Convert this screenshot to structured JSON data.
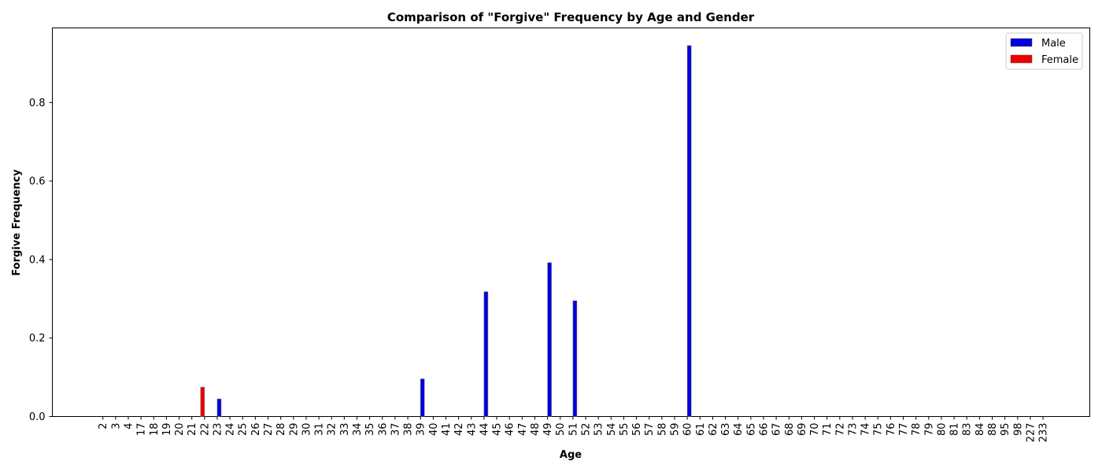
{
  "chart_data": {
    "type": "bar",
    "title": "Comparison of \"Forgive\" Frequency by Age and Gender",
    "xlabel": "Age",
    "ylabel": "Forgive Frequency",
    "categories": [
      "2",
      "3",
      "4",
      "17",
      "18",
      "19",
      "20",
      "21",
      "22",
      "23",
      "24",
      "25",
      "26",
      "27",
      "28",
      "29",
      "30",
      "31",
      "32",
      "33",
      "34",
      "35",
      "36",
      "37",
      "38",
      "39",
      "40",
      "41",
      "42",
      "43",
      "44",
      "45",
      "46",
      "47",
      "48",
      "49",
      "50",
      "51",
      "52",
      "53",
      "54",
      "55",
      "56",
      "57",
      "58",
      "59",
      "60",
      "61",
      "62",
      "63",
      "64",
      "65",
      "66",
      "67",
      "68",
      "69",
      "70",
      "71",
      "72",
      "73",
      "74",
      "75",
      "76",
      "77",
      "78",
      "79",
      "80",
      "81",
      "83",
      "84",
      "88",
      "95",
      "98",
      "227",
      "233"
    ],
    "series": [
      {
        "name": "Male",
        "color": "#0000dd",
        "values": [
          0,
          0,
          0,
          0,
          0,
          0,
          0,
          0,
          0,
          0.045,
          0,
          0,
          0,
          0,
          0,
          0,
          0,
          0,
          0,
          0,
          0,
          0,
          0,
          0,
          0,
          0.096,
          0,
          0,
          0,
          0,
          0.318,
          0,
          0,
          0,
          0,
          0.392,
          0,
          0.295,
          0,
          0,
          0,
          0,
          0,
          0,
          0,
          0,
          0.945,
          0,
          0,
          0,
          0,
          0,
          0,
          0,
          0,
          0,
          0,
          0,
          0,
          0,
          0,
          0,
          0,
          0,
          0,
          0,
          0,
          0,
          0,
          0,
          0,
          0,
          0,
          0,
          0
        ]
      },
      {
        "name": "Female",
        "color": "#ee0000",
        "values": [
          0,
          0,
          0,
          0,
          0,
          0,
          0,
          0,
          0.075,
          0,
          0,
          0,
          0,
          0,
          0,
          0,
          0,
          0,
          0,
          0,
          0,
          0,
          0,
          0,
          0,
          0,
          0,
          0,
          0,
          0,
          0,
          0,
          0,
          0,
          0,
          0,
          0,
          0,
          0,
          0,
          0,
          0,
          0,
          0,
          0,
          0,
          0,
          0,
          0,
          0,
          0,
          0,
          0,
          0,
          0,
          0,
          0,
          0,
          0,
          0,
          0,
          0,
          0,
          0,
          0,
          0,
          0,
          0,
          0,
          0,
          0,
          0,
          0,
          0,
          0
        ]
      }
    ],
    "yticks": [
      "0.0",
      "0.2",
      "0.4",
      "0.6",
      "0.8"
    ],
    "ytick_values": [
      0,
      0.2,
      0.4,
      0.6,
      0.8
    ],
    "ylim": [
      0,
      0.99
    ],
    "grid": false,
    "legend_position": "top-right"
  }
}
